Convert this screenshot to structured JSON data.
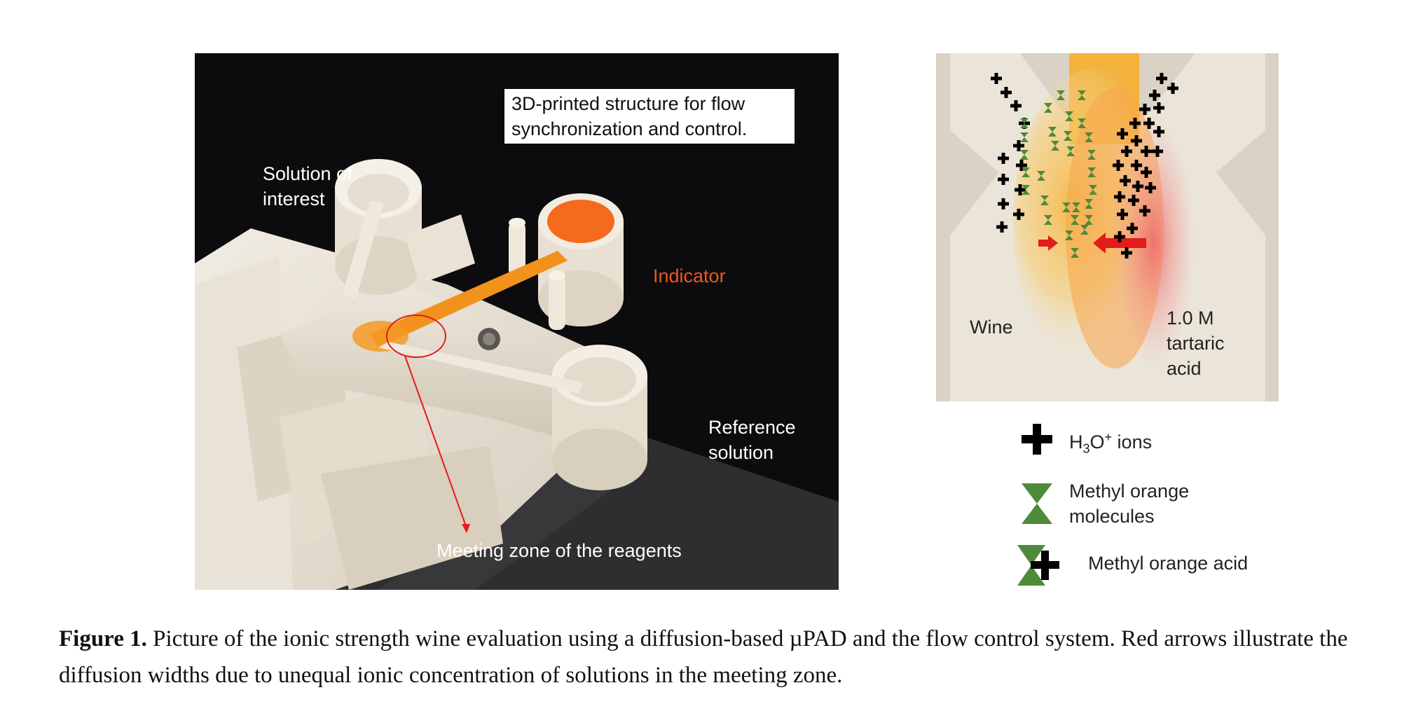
{
  "left_panel": {
    "box_label": "3D-printed structure for flow synchronization and control.",
    "solution_label_1": "Solution of",
    "solution_label_2": "interest",
    "indicator_label": "Indicator",
    "reference_label_1": "Reference",
    "reference_label_2": "solution",
    "meeting_label": "Meeting zone of the reagents"
  },
  "right_panel": {
    "wine_label": "Wine",
    "acid_label_1": "1.0 M",
    "acid_label_2": "tartaric",
    "acid_label_3": "acid"
  },
  "legend": {
    "h3o_main": "H",
    "h3o_sub": "3",
    "h3o_o": "O",
    "h3o_sup": "+",
    "h3o_rest": " ions",
    "mo_line1": "Methyl orange",
    "mo_line2": "molecules",
    "moa": "Methyl orange acid"
  },
  "caption": {
    "label": "Figure 1.",
    "text": " Picture of the ionic strength wine evaluation using a diffusion-based µPAD and the flow control system. Red arrows illustrate the diffusion widths due to unequal ionic concentration of solutions in the meeting zone."
  },
  "colors": {
    "indicator_orange": "#f0571a",
    "arrow_red": "#e31b1b",
    "legend_green": "#4f8a3a"
  }
}
